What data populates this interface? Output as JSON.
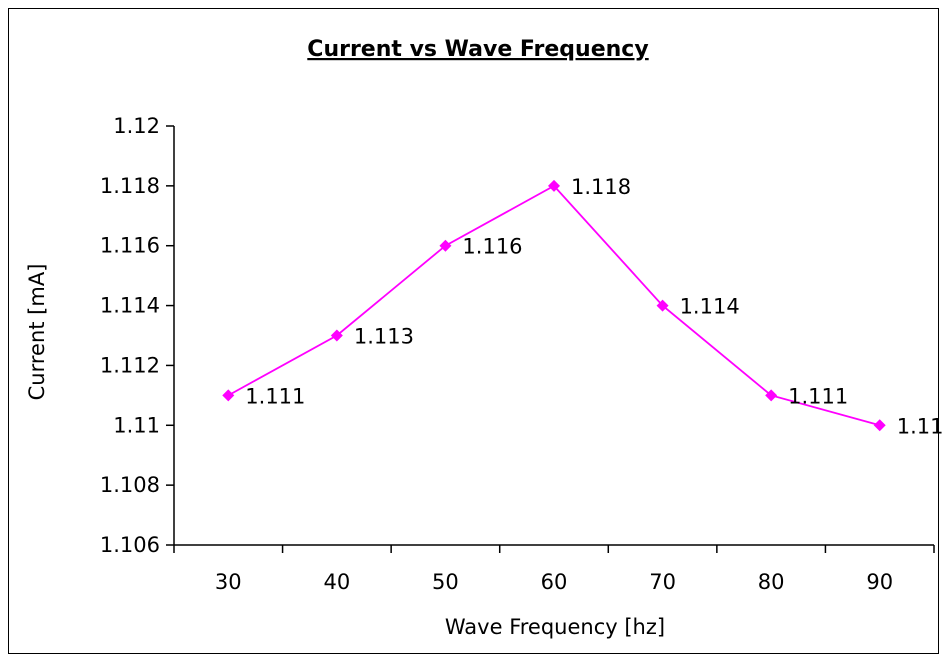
{
  "chart_data": {
    "type": "line",
    "title": "Current vs Wave Frequency",
    "xlabel": "Wave Frequency [hz]",
    "ylabel": "Current [mA]",
    "categories": [
      "30",
      "40",
      "50",
      "60",
      "70",
      "80",
      "90"
    ],
    "values": [
      1.111,
      1.113,
      1.116,
      1.118,
      1.114,
      1.111,
      1.11
    ],
    "data_labels": [
      "1.111",
      "1.113",
      "1.116",
      "1.118",
      "1.114",
      "1.111",
      "1.11"
    ],
    "y_ticks": [
      "1.106",
      "1.108",
      "1.11",
      "1.112",
      "1.114",
      "1.116",
      "1.118",
      "1.12"
    ],
    "ylim": [
      1.106,
      1.12
    ],
    "grid": false,
    "legend": "none",
    "series_color": "#ff00ff"
  }
}
